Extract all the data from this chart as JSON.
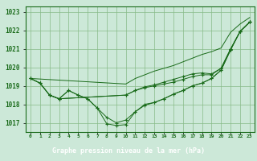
{
  "title": "Graphe pression niveau de la mer (hPa)",
  "xlabel_hours": [
    0,
    1,
    2,
    3,
    4,
    5,
    6,
    7,
    8,
    9,
    10,
    11,
    12,
    13,
    14,
    15,
    16,
    17,
    18,
    19,
    20,
    21,
    22,
    23
  ],
  "line_high": [
    1019.4,
    null,
    null,
    null,
    null,
    null,
    null,
    null,
    null,
    null,
    1019.1,
    1019.4,
    1019.6,
    1019.8,
    1019.95,
    1020.1,
    1020.3,
    1020.5,
    1020.7,
    1020.85,
    1021.05,
    1021.9,
    1022.35,
    1022.7
  ],
  "line_med1": [
    1019.4,
    1019.15,
    1018.5,
    1018.3,
    null,
    null,
    null,
    null,
    null,
    null,
    1018.5,
    1018.75,
    1018.9,
    1019.0,
    1019.1,
    1019.2,
    1019.35,
    1019.5,
    1019.6,
    1019.6,
    1019.95,
    1021.0,
    1021.95,
    1022.45
  ],
  "line_med2": [
    1019.4,
    1019.15,
    1018.5,
    1018.3,
    null,
    null,
    null,
    null,
    null,
    null,
    1018.5,
    1018.75,
    1018.95,
    1019.05,
    1019.2,
    1019.35,
    1019.5,
    1019.65,
    1019.7,
    1019.65,
    1019.95,
    1021.0,
    1021.95,
    1022.45
  ],
  "line_low": [
    1019.4,
    1019.15,
    1018.5,
    1018.3,
    1018.75,
    1018.5,
    1018.3,
    1017.8,
    1017.3,
    1017.0,
    1017.15,
    1017.6,
    1018.0,
    1018.1,
    1018.3,
    1018.55,
    1018.75,
    1019.0,
    1019.15,
    1019.4,
    1019.85,
    1020.95,
    1021.95,
    1022.45
  ],
  "line_vlow": [
    null,
    null,
    1018.5,
    1018.3,
    1018.75,
    1018.5,
    1018.3,
    1017.8,
    1016.95,
    1016.85,
    1016.9,
    1017.6,
    1017.95,
    1018.1,
    1018.3,
    1018.55,
    1018.75,
    1019.0,
    1019.15,
    1019.4,
    1019.85,
    1020.95,
    1021.95,
    1022.45
  ],
  "ylim": [
    1016.5,
    1023.3
  ],
  "yticks": [
    1017,
    1018,
    1019,
    1020,
    1021,
    1022,
    1023
  ],
  "line_color": "#1a6b1a",
  "bg_color": "#cce8d8",
  "grid_color": "#88bb88",
  "title_bg": "#2d7a2d",
  "title_color": "#ffffff",
  "markersize": 2.5
}
